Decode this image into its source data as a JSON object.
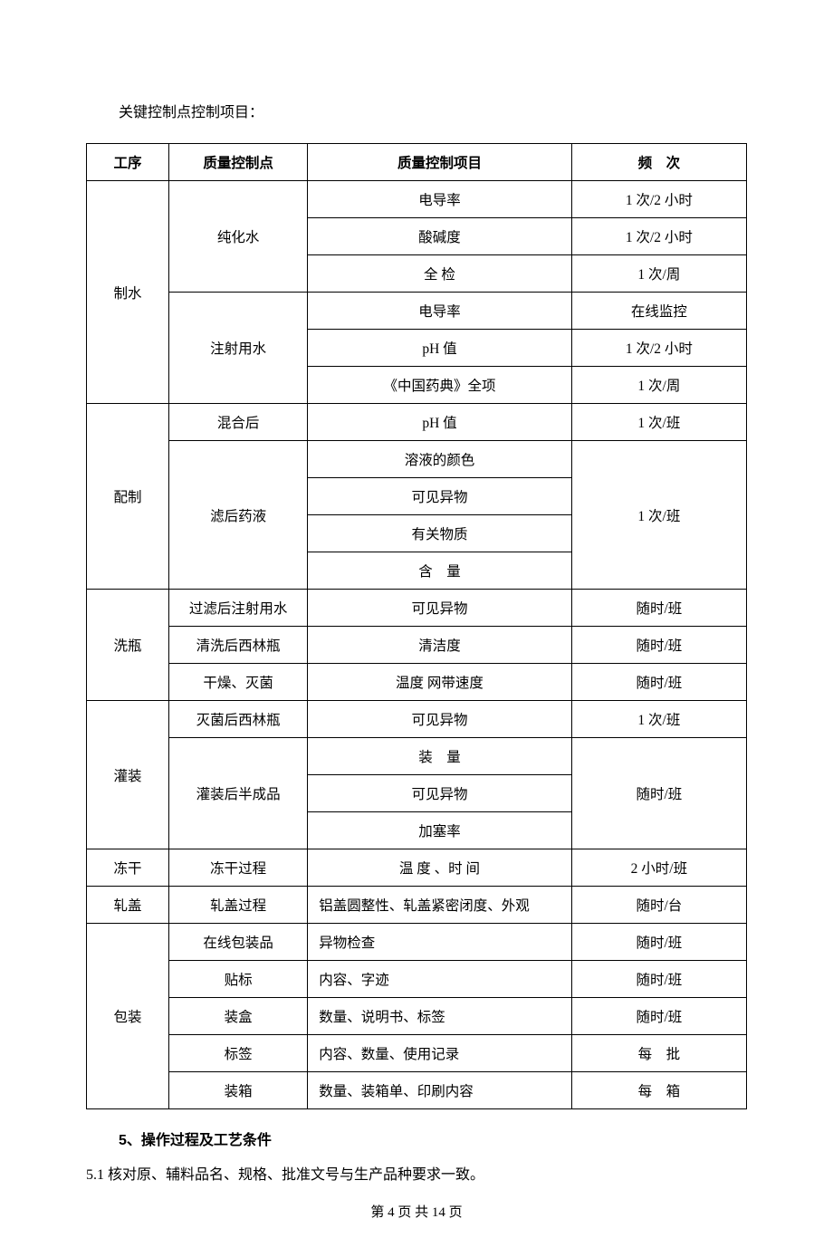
{
  "intro": "关键控制点控制项目：",
  "table": {
    "headers": [
      "工序",
      "质量控制点",
      "质量控制项目",
      "频　次"
    ],
    "columns_width": [
      "12.5%",
      "21%",
      "40%",
      "26.5%"
    ],
    "border_color": "#000000",
    "font_size": 15.5,
    "background_color": "#ffffff",
    "text_color": "#000000",
    "rows": [
      {
        "c1": "制水",
        "c1_rowspan": 6,
        "c2": "纯化水",
        "c2_rowspan": 3,
        "c3": "电导率",
        "c4": "1 次/2 小时"
      },
      {
        "c3": "酸碱度",
        "c4": "1 次/2 小时"
      },
      {
        "c3": "全 检",
        "c4": "1 次/周"
      },
      {
        "c2": "注射用水",
        "c2_rowspan": 3,
        "c3": "电导率",
        "c4": "在线监控"
      },
      {
        "c3": "pH 值",
        "c4": "1 次/2 小时"
      },
      {
        "c3": "《中国药典》全项",
        "c4": "1 次/周"
      },
      {
        "c1": "配制",
        "c1_rowspan": 5,
        "c2": "混合后",
        "c3": "pH 值",
        "c4": "1 次/班"
      },
      {
        "c2": "滤后药液",
        "c2_rowspan": 4,
        "c3": "溶液的颜色",
        "c4": "1 次/班",
        "c4_rowspan": 4
      },
      {
        "c3": "可见异物"
      },
      {
        "c3": "有关物质"
      },
      {
        "c3": "含　量"
      },
      {
        "c1": "洗瓶",
        "c1_rowspan": 3,
        "c2": "过滤后注射用水",
        "c3": "可见异物",
        "c4": "随时/班"
      },
      {
        "c2": "清洗后西林瓶",
        "c3": "清洁度",
        "c4": "随时/班"
      },
      {
        "c2": "干燥、灭菌",
        "c3": "温度 网带速度",
        "c4": "随时/班"
      },
      {
        "c1": "灌装",
        "c1_rowspan": 4,
        "c2": "灭菌后西林瓶",
        "c3": "可见异物",
        "c4": "1 次/班"
      },
      {
        "c2": "灌装后半成品",
        "c2_rowspan": 3,
        "c3": "装　量",
        "c4": "随时/班",
        "c4_rowspan": 3
      },
      {
        "c3": "可见异物"
      },
      {
        "c3": "加塞率"
      },
      {
        "c1": "冻干",
        "c2": "冻干过程",
        "c3": "温 度 、时 间",
        "c4": "2 小时/班"
      },
      {
        "c1": "轧盖",
        "c2": "轧盖过程",
        "c3": "铝盖圆整性、轧盖紧密闭度、外观",
        "c3_align": "left",
        "c4": "随时/台"
      },
      {
        "c1": "包装",
        "c1_rowspan": 5,
        "c2": "在线包装品",
        "c3": "异物检查",
        "c3_align": "left",
        "c4": "随时/班"
      },
      {
        "c2": "贴标",
        "c3": "内容、字迹",
        "c3_align": "left",
        "c4": "随时/班"
      },
      {
        "c2": "装盒",
        "c3": "数量、说明书、标签",
        "c3_align": "left",
        "c4": "随时/班"
      },
      {
        "c2": "标签",
        "c3": "内容、数量、使用记录",
        "c3_align": "left",
        "c4": "每　批"
      },
      {
        "c2": "装箱",
        "c3": "数量、装箱单、印刷内容",
        "c3_align": "left",
        "c4": "每　箱"
      }
    ]
  },
  "section_heading": "5、操作过程及工艺条件",
  "body_text": "5.1 核对原、辅料品名、规格、批准文号与生产品种要求一致。",
  "footer": "第 4 页 共 14 页"
}
